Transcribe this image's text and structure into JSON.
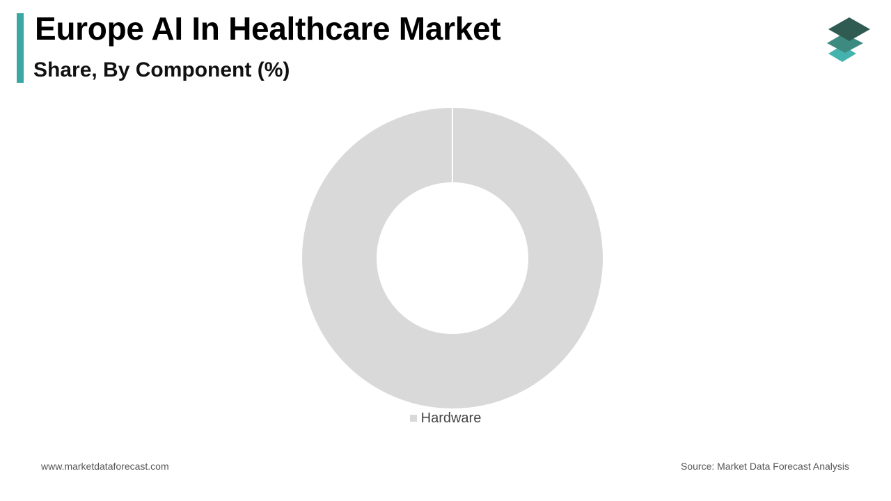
{
  "header": {
    "title": "Europe AI In Healthcare Market",
    "subtitle": "Share, By Component (%)"
  },
  "colors": {
    "accent": "#3aa9a3",
    "logo_top": "#2f5b52",
    "logo_mid": "#3d8a80",
    "logo_bottom": "#45b3ad",
    "slice": "#d9d9d9",
    "separator": "#ffffff"
  },
  "logo": {
    "icon": "stacked-layers-icon"
  },
  "chart_data": {
    "type": "pie",
    "style": "donut",
    "categories": [
      "Hardware"
    ],
    "values": [
      100
    ],
    "legend_position": "bottom"
  },
  "footer": {
    "website": "www.marketdataforecast.com",
    "source": "Source: Market Data Forecast Analysis"
  }
}
